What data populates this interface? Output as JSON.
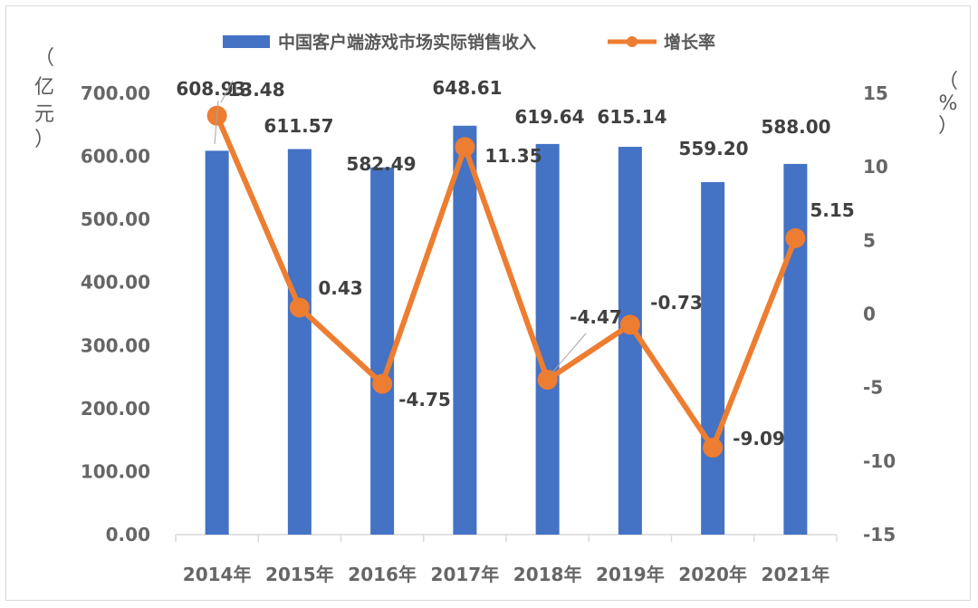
{
  "chart_data": {
    "type": "bar+line",
    "categories": [
      "2014年",
      "2015年",
      "2016年",
      "2017年",
      "2018年",
      "2019年",
      "2020年",
      "2021年"
    ],
    "series": [
      {
        "name": "中国客户端游戏市场实际销售收入",
        "kind": "bar",
        "axis": "left",
        "color": "#4472c4",
        "values": [
          608.93,
          611.57,
          582.49,
          648.61,
          619.64,
          615.14,
          559.2,
          588.0
        ],
        "labels": [
          "608.93",
          "611.57",
          "582.49",
          "648.61",
          "619.64",
          "615.14",
          "559.20",
          "588.00"
        ]
      },
      {
        "name": "增长率",
        "kind": "line",
        "axis": "right",
        "color": "#ed7d31",
        "values": [
          13.48,
          0.43,
          -4.75,
          11.35,
          -4.47,
          -0.73,
          -9.09,
          5.15
        ],
        "labels": [
          "13.48",
          "0.43",
          "-4.75",
          "11.35",
          "-4.47",
          "-0.73",
          "-9.09",
          "5.15"
        ]
      }
    ],
    "left_axis": {
      "unit_chars": [
        "（",
        "亿",
        "元",
        "）"
      ],
      "ylim": [
        0,
        700
      ],
      "ticks": [
        "0.00",
        "100.00",
        "200.00",
        "300.00",
        "400.00",
        "500.00",
        "600.00",
        "700.00"
      ]
    },
    "right_axis": {
      "unit_chars": [
        "（",
        "%",
        "）"
      ],
      "ylim": [
        -15,
        15
      ],
      "ticks": [
        "-15",
        "-10",
        "-5",
        "0",
        "5",
        "10",
        "15"
      ]
    },
    "legend_position": "top-center",
    "grid": false
  }
}
